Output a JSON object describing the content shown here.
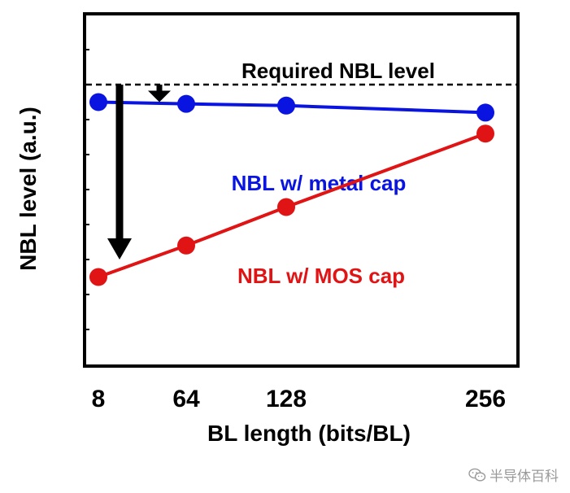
{
  "chart_data": {
    "type": "line",
    "xlabel": "BL length (bits/BL)",
    "ylabel": "NBL level (a.u.)",
    "x_ticks": [
      "8",
      "64",
      "128",
      "256"
    ],
    "x": [
      8,
      64,
      128,
      256
    ],
    "xlim": [
      0,
      270
    ],
    "ylim": [
      0,
      10
    ],
    "y_ticks_labeled": false,
    "grid": false,
    "reference_line": {
      "label": "Required NBL level",
      "y": 8.0,
      "style": "dashed",
      "color": "#000000"
    },
    "series": [
      {
        "name": "NBL w/ metal cap",
        "color": "#0a14e0",
        "values": [
          7.5,
          7.45,
          7.4,
          7.2
        ]
      },
      {
        "name": "NBL w/ MOS cap",
        "color": "#e01414",
        "values": [
          2.5,
          3.4,
          4.5,
          6.6
        ]
      }
    ],
    "annotations": [
      {
        "type": "arrow",
        "direction": "down",
        "size": "large",
        "from_y": 8.0,
        "to_y": 3.0,
        "x": 22
      },
      {
        "type": "arrow",
        "direction": "down",
        "size": "small",
        "from_y": 8.0,
        "to_y": 7.5,
        "x": 50
      }
    ]
  },
  "watermark": {
    "text": "半导体百科",
    "icon": "wechat-icon"
  }
}
